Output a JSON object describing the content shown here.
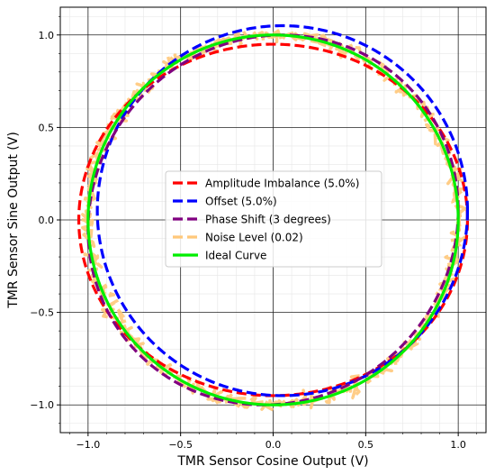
{
  "chart_data": {
    "type": "line",
    "title": "",
    "xlabel": "TMR Sensor Cosine Output (V)",
    "ylabel": "TMR Sensor Sine Output (V)",
    "xlim": [
      -1.15,
      1.15
    ],
    "ylim": [
      -1.15,
      1.15
    ],
    "xticks": [
      -1.0,
      -0.5,
      0.0,
      0.5,
      1.0
    ],
    "yticks": [
      -1.0,
      -0.5,
      0.0,
      0.5,
      1.0
    ],
    "xtick_labels": [
      "−1.0",
      "−0.5",
      "0.0",
      "0.5",
      "1.0"
    ],
    "ytick_labels": [
      "−1.0",
      "−0.5",
      "0.0",
      "0.5",
      "1.0"
    ],
    "grid": true,
    "minor_grid": true,
    "legend_position": "center",
    "series": [
      {
        "name": "Amplitude Imbalance (5.0%)",
        "color": "#ff0000",
        "style": "dashed",
        "equation": "x = 1.05 cos(t), y = 0.95 sin(t)"
      },
      {
        "name": "Offset (5.0%)",
        "color": "#0000ff",
        "style": "dashed",
        "equation": "x = cos(t) + 0.05, y = sin(t) + 0.05"
      },
      {
        "name": "Phase Shift (3 degrees)",
        "color": "#800080",
        "style": "dashed",
        "equation": "x = cos(t), y = sin(t + 3°)"
      },
      {
        "name": "Noise Level (0.02)",
        "color": "#ffc87a",
        "style": "dashed",
        "equation": "x = cos(t) + n, y = sin(t) + n, noise std 0.02"
      },
      {
        "name": "Ideal Curve",
        "color": "#00ee00",
        "style": "solid",
        "equation": "x = cos(t), y = sin(t)"
      }
    ]
  }
}
